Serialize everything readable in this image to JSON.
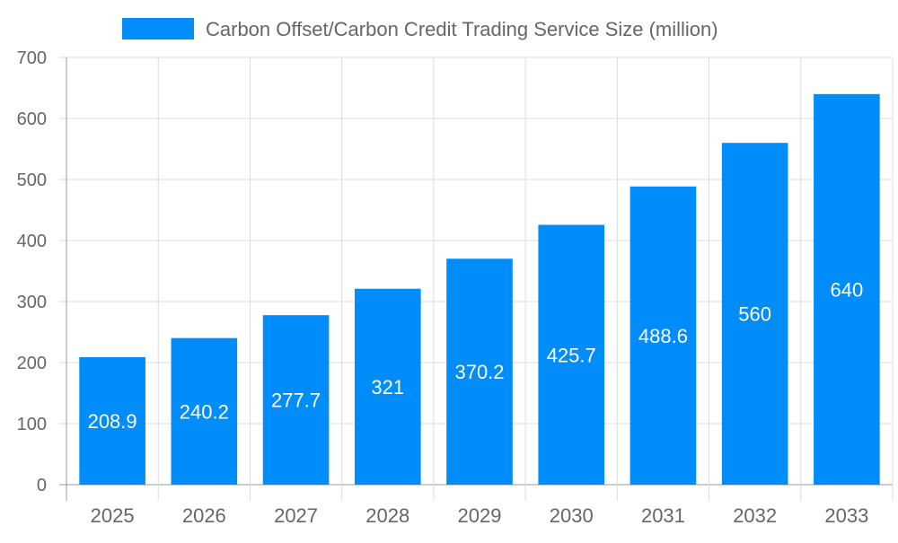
{
  "chart_data": {
    "type": "bar",
    "title": "",
    "xlabel": "",
    "ylabel": "",
    "categories": [
      "2025",
      "2026",
      "2027",
      "2028",
      "2029",
      "2030",
      "2031",
      "2032",
      "2033"
    ],
    "series": [
      {
        "name": "Carbon Offset/Carbon Credit Trading Service Size (million)",
        "values": [
          208.9,
          240.2,
          277.7,
          321,
          370.2,
          425.7,
          488.6,
          560,
          640
        ]
      }
    ],
    "data_labels": [
      "208.9",
      "240.2",
      "277.7",
      "321",
      "370.2",
      "425.7",
      "488.6",
      "560",
      "640"
    ],
    "ylim": [
      0,
      700
    ],
    "yticks": [
      "0",
      "100",
      "200",
      "300",
      "400",
      "500",
      "600",
      "700"
    ],
    "grid": true,
    "legend_position": "top",
    "colors": {
      "bar": "#008cf9",
      "grid": "#dddddd",
      "axis": "#999999",
      "text": "#666666",
      "label": "#ffffff"
    }
  }
}
